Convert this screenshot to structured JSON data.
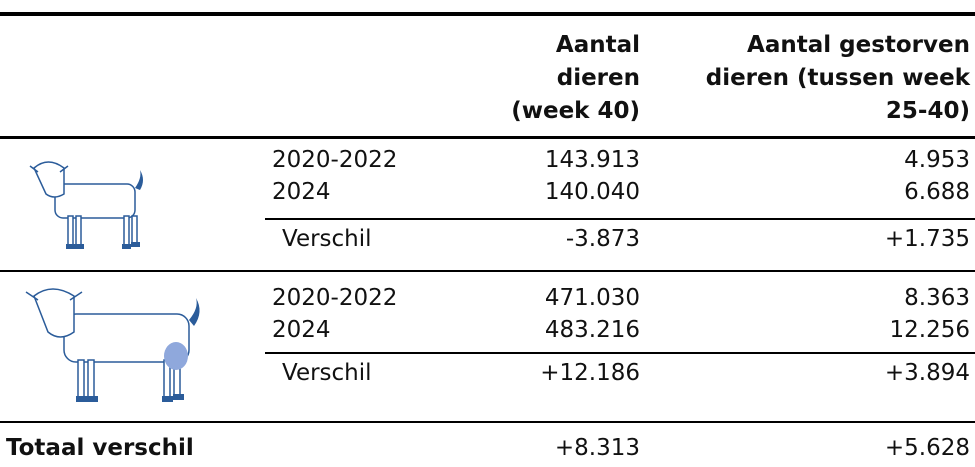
{
  "header": {
    "columns": [
      [
        "Aantal",
        "dieren",
        "(week 40)"
      ],
      [
        "Aantal gestorven",
        "dieren (tussen week",
        "25-40)"
      ]
    ]
  },
  "groups": [
    {
      "rows": [
        [
          "2020-2022",
          "143.913",
          "4.953"
        ],
        [
          "2024",
          "140.040",
          "6.688"
        ],
        [
          "Verschil",
          "-3.873",
          "+1.735"
        ]
      ]
    },
    {
      "rows": [
        [
          "2020-2022",
          "471.030",
          "8.363"
        ],
        [
          "2024",
          "483.216",
          "12.256"
        ],
        [
          "Verschil",
          "+12.186",
          "+3.894"
        ]
      ]
    }
  ],
  "total": [
    "Totaal verschil",
    "+8.313",
    "+5.628"
  ]
}
